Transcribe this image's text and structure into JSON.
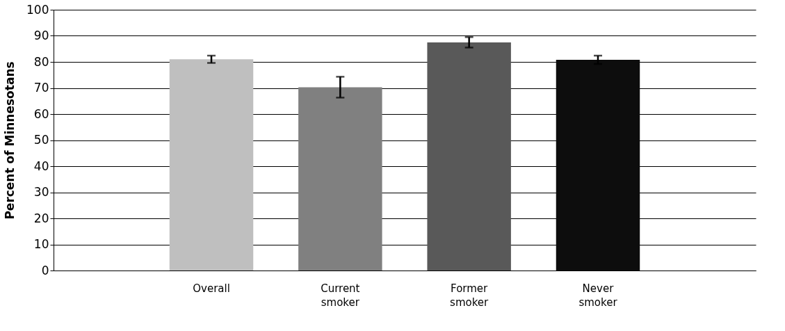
{
  "chart_data": {
    "type": "bar",
    "ylabel": "Percent of Minnesotans",
    "categories": [
      "Overall",
      "Current smoker",
      "Former smoker",
      "Never smoker"
    ],
    "values": [
      81.0,
      70.3,
      87.5,
      80.8
    ],
    "errors": [
      1.4,
      4.0,
      2.0,
      1.6
    ],
    "colors": [
      "#bfbfbf",
      "#808080",
      "#595959",
      "#0d0d0d"
    ],
    "ylim": [
      0,
      100
    ],
    "yticks": [
      0,
      10,
      20,
      30,
      40,
      50,
      60,
      70,
      80,
      90,
      100
    ],
    "grid": "y"
  }
}
